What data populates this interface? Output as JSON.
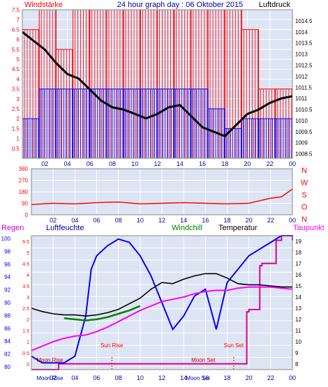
{
  "colors": {
    "panel_bg": "#dde4f4",
    "grid": "#ffffff",
    "frame": "#000000",
    "wind_max": "#ff0000",
    "wind_avg": "#0000ff",
    "pressure": "#000000",
    "direction": "#ff0000",
    "rain": "#ff0000",
    "humidity": "#0000ff",
    "windchill": "#008000",
    "temperature": "#000000",
    "dewpoint": "#ff00ff",
    "sun": "#ff0000",
    "moon": "#cc0000",
    "day_tick": "#0000aa"
  },
  "top_panel": {
    "left_title": "Windstärke",
    "center_title": "24 hour graph day : 06 Oktober 2015",
    "right_title": "Luftdruck",
    "left_ticks": [
      "7.5",
      "7",
      "6.5",
      "6",
      "5.5",
      "5",
      "4.5",
      "4",
      "3.5",
      "3",
      "2.5",
      "2",
      "1.5",
      "1",
      "0.5"
    ],
    "right_ticks": [
      "1014.5",
      "1014",
      "1013.5",
      "1013",
      "1012.5",
      "1012",
      "1011.5",
      "1011",
      "1010.5",
      "1010",
      "1009.5",
      "1009",
      "1008.5"
    ],
    "x_ticks": [
      "02",
      "04",
      "06",
      "08",
      "10",
      "12",
      "14",
      "16",
      "18",
      "20",
      "22",
      "00"
    ]
  },
  "mid_panel": {
    "left_ticks": [
      "360",
      "270",
      "180",
      "90",
      "0"
    ],
    "compass": [
      "N",
      "W",
      "S",
      "O",
      "N"
    ],
    "x_ticks": [
      "02",
      "04",
      "06",
      "08",
      "10",
      "12",
      "14",
      "16",
      "18",
      "20",
      "22",
      "00"
    ]
  },
  "bottom_panel": {
    "legend": {
      "rain": "Regen",
      "humidity": "Luftfeuchte",
      "windchill": "Windchill",
      "temperature": "Temperatur",
      "dewpoint": "Taupunkt"
    },
    "rain_ticks": [
      "5.5",
      "5",
      "4.5",
      "4",
      "3.5",
      "3",
      "2.5",
      "2",
      "1.5",
      "1",
      "0.5",
      "0"
    ],
    "humidity_ticks": [
      "100",
      "98",
      "96",
      "94",
      "92",
      "90",
      "88",
      "86",
      "84",
      "82",
      "80"
    ],
    "temp_ticks": [
      "19",
      "18",
      "17",
      "16",
      "15",
      "14",
      "13",
      "12",
      "11",
      "10",
      "9",
      "8"
    ],
    "x_ticks": [
      "02",
      "04",
      "06",
      "08",
      "10",
      "12",
      "14",
      "16",
      "18",
      "20",
      "22",
      "00"
    ],
    "annotations": {
      "sun_rise": "Sun Rise",
      "sun_set": "Sun Set",
      "moon_rise": "Moon Rise",
      "moon_set": "Moon Set",
      "moon_rise_axis": "Moon Rise",
      "moon_set_axis": "Moon Set"
    }
  },
  "chart_data": [
    {
      "type": "line",
      "title": "24 hour graph day : 06 Oktober 2015",
      "x_unit": "hour",
      "series": [
        {
          "name": "Windstärke",
          "axis": "left",
          "ylim": [
            0,
            7.5
          ],
          "x": [
            0,
            1.5,
            3,
            4.5,
            6,
            7.5,
            9,
            10.5,
            12,
            13.5,
            15,
            16.5,
            18,
            19.5,
            21,
            22.5,
            24
          ],
          "max": [
            6.5,
            7.5,
            5.5,
            7.5,
            7.5,
            7.5,
            7.5,
            7.5,
            7.5,
            7.5,
            7.5,
            7.5,
            7.5,
            6.5,
            3.5,
            3.5,
            3.5
          ],
          "avg": [
            2,
            3.5,
            3.5,
            3.5,
            3.5,
            3.5,
            3.5,
            3.5,
            3.5,
            3.5,
            3.5,
            2.5,
            1.5,
            2,
            2,
            2,
            1.5
          ]
        },
        {
          "name": "Luftdruck",
          "axis": "right",
          "ylim": [
            1008.3,
            1015
          ],
          "x": [
            0,
            1,
            2,
            3,
            4,
            5,
            6,
            7,
            8,
            9,
            10,
            11,
            12,
            13,
            14,
            15,
            16,
            17,
            18,
            19,
            20,
            21,
            22,
            23,
            24
          ],
          "values": [
            1014.0,
            1013.6,
            1013.2,
            1012.6,
            1012.1,
            1011.9,
            1011.4,
            1010.9,
            1010.6,
            1010.5,
            1010.3,
            1010.1,
            1010.3,
            1010.6,
            1010.7,
            1010.2,
            1009.7,
            1009.5,
            1009.3,
            1009.8,
            1010.3,
            1010.5,
            1010.8,
            1011.0,
            1011.1
          ]
        }
      ]
    },
    {
      "type": "line",
      "title": "",
      "x_unit": "hour",
      "ylim": [
        0,
        360
      ],
      "series": [
        {
          "name": "",
          "x": [
            0,
            2,
            4,
            6,
            8,
            10,
            12,
            14,
            16,
            18,
            20,
            21,
            22,
            23,
            24
          ],
          "values": [
            80,
            90,
            85,
            95,
            100,
            85,
            90,
            95,
            90,
            85,
            90,
            110,
            130,
            140,
            200
          ]
        }
      ]
    },
    {
      "type": "line",
      "title": "",
      "x_unit": "hour",
      "series": [
        {
          "name": "Luftfeuchte",
          "axis": "humidity",
          "ylim": [
            80,
            100
          ],
          "x": [
            0,
            1,
            2,
            3,
            4,
            5,
            5.5,
            6,
            7,
            8,
            9,
            10,
            11,
            12,
            13,
            14,
            15,
            16,
            17,
            18,
            19,
            20,
            21,
            22,
            23,
            24
          ],
          "values": [
            82,
            81,
            81,
            81,
            82,
            88,
            95,
            97,
            98.5,
            99.5,
            99,
            97,
            94,
            90,
            86,
            88,
            91,
            92,
            86,
            93,
            95,
            97,
            98,
            99,
            100,
            100
          ]
        },
        {
          "name": "Temperatur",
          "axis": "temp",
          "ylim": [
            7.5,
            19.5
          ],
          "x": [
            0,
            1,
            2,
            3,
            4,
            5,
            6,
            7,
            8,
            9,
            10,
            11,
            12,
            13,
            14,
            15,
            16,
            17,
            18,
            19,
            20,
            21,
            22,
            23,
            24
          ],
          "values": [
            13.0,
            12.7,
            12.5,
            12.4,
            12.4,
            12.3,
            12.4,
            12.6,
            12.9,
            13.4,
            13.9,
            14.7,
            15.3,
            15.2,
            15.6,
            15.9,
            16.1,
            16.1,
            15.7,
            15.2,
            15.1,
            15.1,
            15.0,
            14.9,
            14.9
          ]
        },
        {
          "name": "Windchill",
          "axis": "temp",
          "ylim": [
            7.5,
            19.5
          ],
          "x": [
            3,
            4,
            5,
            6,
            7,
            8,
            9,
            10
          ],
          "values": [
            12.1,
            12.0,
            11.9,
            12.0,
            12.2,
            12.5,
            12.8,
            13.2
          ]
        },
        {
          "name": "Taupunkt",
          "axis": "temp",
          "ylim": [
            7.5,
            19.5
          ],
          "x": [
            0,
            1,
            2,
            3,
            4,
            5,
            6,
            7,
            8,
            9,
            10,
            11,
            12,
            13,
            14,
            15,
            16,
            17,
            18,
            19,
            20,
            21,
            22,
            23,
            24
          ],
          "values": [
            9.2,
            9.6,
            10.0,
            10.3,
            10.5,
            10.6,
            10.9,
            11.3,
            11.8,
            12.3,
            12.8,
            13.2,
            13.6,
            13.8,
            14.0,
            14.3,
            14.5,
            14.6,
            14.6,
            14.8,
            14.9,
            14.9,
            14.9,
            14.8,
            14.7
          ]
        },
        {
          "name": "Regen",
          "axis": "rain",
          "ylim": [
            0,
            5.8
          ],
          "x": [
            0,
            2.4,
            2.5,
            11,
            15,
            16.5,
            18.5,
            19,
            19.8,
            20,
            21,
            21.2,
            22.5,
            23,
            24
          ],
          "values": [
            0,
            0,
            0.25,
            0.25,
            0.25,
            0.25,
            0.25,
            0.25,
            2.5,
            2.6,
            4.5,
            4.6,
            5.6,
            5.8,
            5.6
          ]
        }
      ]
    }
  ]
}
